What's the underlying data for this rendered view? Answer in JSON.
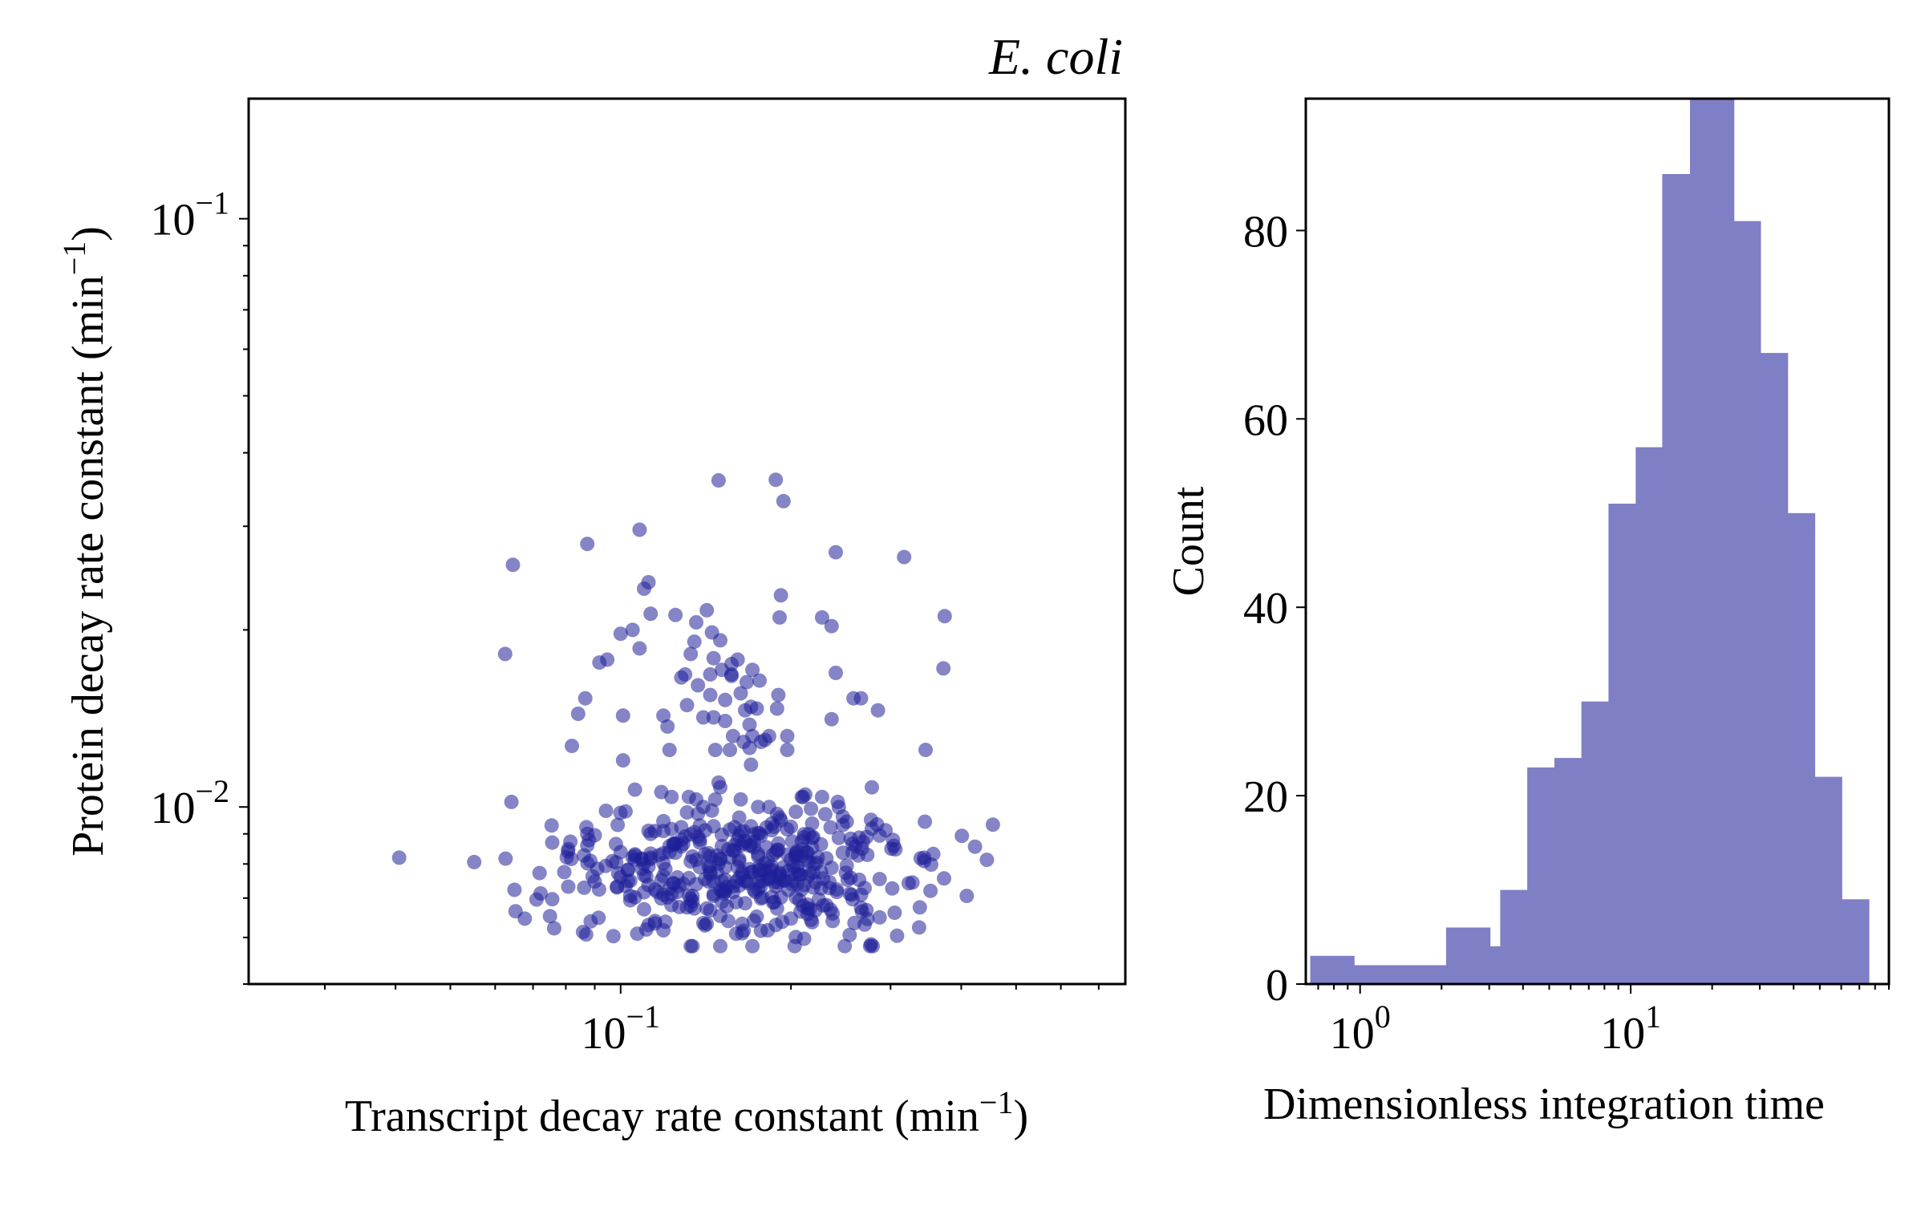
{
  "figure": {
    "title": "E. coli"
  },
  "chart_data": [
    {
      "type": "scatter",
      "xlabel": "Transcript decay rate constant (min",
      "xlabel_sup": "−1",
      "xlabel_end": ")",
      "ylabel": "Protein decay rate constant (min",
      "ylabel_sup": "−1",
      "ylabel_end": ")",
      "x_scale": "log",
      "y_scale": "log",
      "xlim": [
        0.022,
        0.78
      ],
      "ylim": [
        0.005,
        0.16
      ],
      "xticks": [
        {
          "base": "10",
          "exp": "−1",
          "value": 0.1
        }
      ],
      "yticks": [
        {
          "base": "10",
          "exp": "−2",
          "value": 0.01
        },
        {
          "base": "10",
          "exp": "−1",
          "value": 0.1
        }
      ],
      "marker_color": "#1f1f99",
      "marker_alpha": 0.55,
      "grid": false,
      "legend": false,
      "x": [],
      "y": []
    },
    {
      "type": "bar",
      "xlabel": "Dimensionless integration time",
      "ylabel": "Count",
      "x_scale": "log",
      "xlim": [
        0.63,
        90
      ],
      "ylim": [
        0,
        94
      ],
      "yticks": [
        0,
        20,
        40,
        60,
        80
      ],
      "xticks": [
        {
          "base": "10",
          "exp": "0",
          "value": 1
        },
        {
          "base": "10",
          "exp": "1",
          "value": 10
        }
      ],
      "bar_color": "#7f7fc6",
      "grid": false,
      "legend": false,
      "bin_centers": [
        0.79,
        1.0,
        1.26,
        1.58,
        2.0,
        2.51,
        3.16,
        3.98,
        5.01,
        6.31,
        7.94,
        10.0,
        12.6,
        15.8,
        20.0,
        25.1,
        31.6,
        39.8,
        50.1,
        63.1
      ],
      "values": [
        3,
        2,
        2,
        2,
        2,
        6,
        4,
        10,
        23,
        24,
        30,
        51,
        57,
        86,
        94,
        81,
        67,
        50,
        22,
        9
      ]
    }
  ]
}
